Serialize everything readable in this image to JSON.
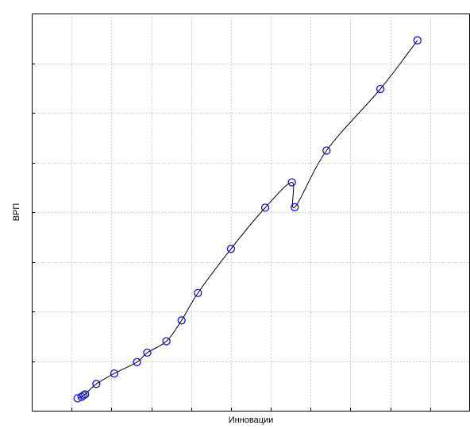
{
  "chart_data": {
    "type": "scatter",
    "title": "",
    "xlabel": "Инновации",
    "ylabel": "ВРП",
    "xlim": [
      0,
      11
    ],
    "ylim": [
      0,
      8
    ],
    "x_gridlines": [
      1,
      2,
      3,
      4,
      5,
      6,
      7,
      8,
      9,
      10
    ],
    "y_gridlines": [
      1,
      2,
      3,
      4,
      5,
      6,
      7
    ],
    "grid": true,
    "marker": "circle",
    "marker_color": "#1010d0",
    "line_color": "#000000",
    "series": [
      {
        "values": [
          {
            "x": 1.15,
            "y": 0.25
          },
          {
            "x": 1.25,
            "y": 0.28
          },
          {
            "x": 1.3,
            "y": 0.31
          },
          {
            "x": 1.34,
            "y": 0.33
          },
          {
            "x": 1.62,
            "y": 0.54
          },
          {
            "x": 2.07,
            "y": 0.75
          },
          {
            "x": 2.64,
            "y": 0.98
          },
          {
            "x": 2.9,
            "y": 1.17
          },
          {
            "x": 3.38,
            "y": 1.4
          },
          {
            "x": 3.76,
            "y": 1.82
          },
          {
            "x": 4.17,
            "y": 2.37
          },
          {
            "x": 5.0,
            "y": 3.26
          },
          {
            "x": 5.86,
            "y": 4.09
          },
          {
            "x": 6.53,
            "y": 4.6
          },
          {
            "x": 6.6,
            "y": 4.1
          },
          {
            "x": 7.4,
            "y": 5.24
          },
          {
            "x": 8.75,
            "y": 6.48
          },
          {
            "x": 9.68,
            "y": 7.46
          }
        ]
      }
    ]
  }
}
